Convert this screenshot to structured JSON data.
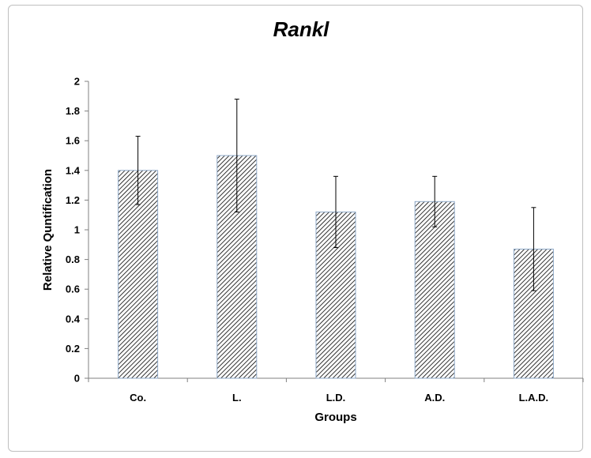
{
  "chart_data": {
    "type": "bar",
    "title": "Rankl",
    "xlabel": "Groups",
    "ylabel": "Relative Quntification",
    "categories": [
      "Co.",
      "L.",
      "L.D.",
      "A.D.",
      "L.A.D."
    ],
    "values": [
      1.4,
      1.5,
      1.12,
      1.19,
      0.87
    ],
    "error": [
      0.23,
      0.38,
      0.24,
      0.17,
      0.28
    ],
    "ylim": [
      0,
      2
    ],
    "yticks": [
      "0",
      "0.2",
      "0.4",
      "0.6",
      "0.8",
      "1",
      "1.2",
      "1.4",
      "1.6",
      "1.8",
      "2"
    ],
    "grid": false,
    "legend": "none",
    "bar_fill": "diagonal hatch",
    "bar_stroke": "#8ea9c8",
    "hatch_color": "#000000"
  }
}
